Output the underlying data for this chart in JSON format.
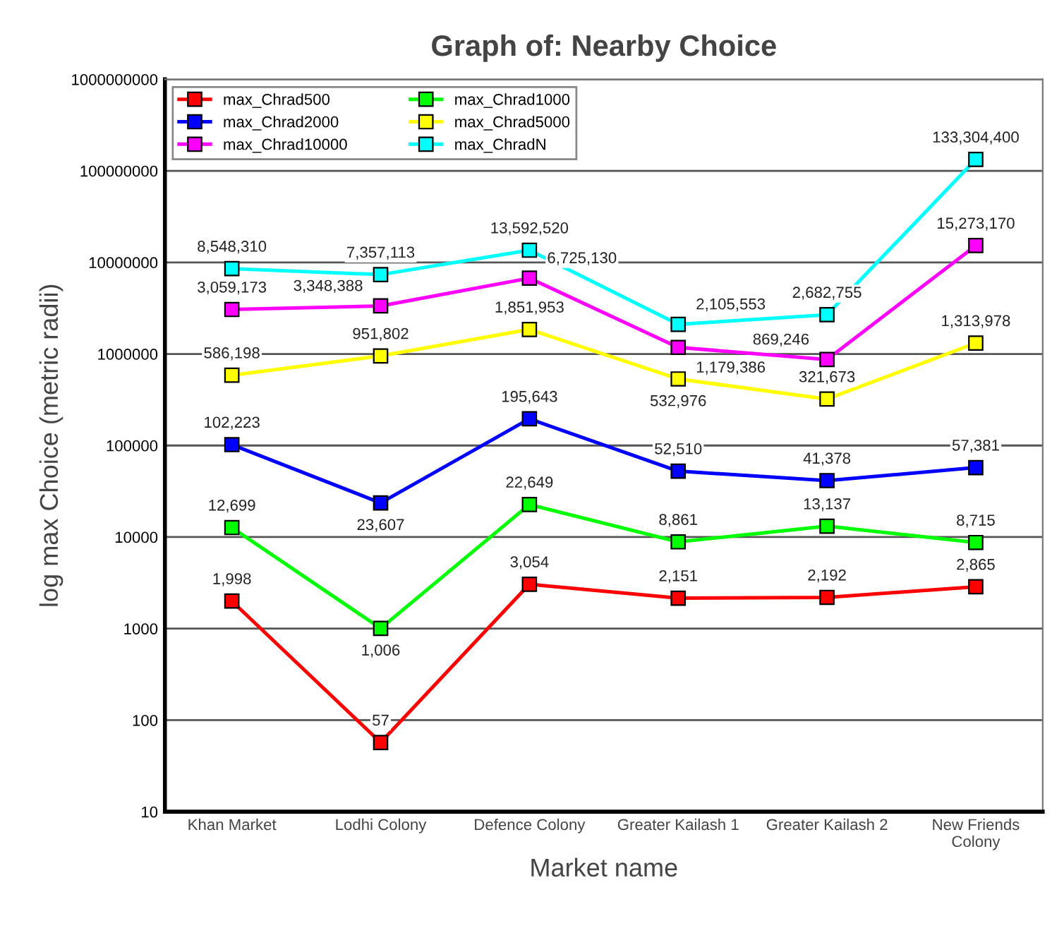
{
  "chart_data": {
    "type": "line",
    "title": "Graph of: Nearby Choice",
    "xlabel": "Market name",
    "ylabel": "log max Choice (metric radii)",
    "categories": [
      "Khan Market",
      "Lodhi Colony",
      "Defence Colony",
      "Greater Kailash 1",
      "Greater Kailash 2",
      "New Friends\nColony"
    ],
    "series": [
      {
        "name": "max_Chrad500",
        "color": "#ff0000",
        "values": [
          1998,
          57,
          3054,
          2151,
          2192,
          2865
        ],
        "value_labels": [
          "1,998",
          "57",
          "3,054",
          "2,151",
          "2,192",
          "2,865"
        ]
      },
      {
        "name": "max_Chrad1000",
        "color": "#00ff00",
        "values": [
          12699,
          1006,
          22649,
          8861,
          13137,
          8715
        ],
        "value_labels": [
          "12,699",
          "1,006",
          "22,649",
          "8,861",
          "13,137",
          "8,715"
        ]
      },
      {
        "name": "max_Chrad2000",
        "color": "#0000ff",
        "values": [
          102223,
          23607,
          195643,
          52510,
          41378,
          57381
        ],
        "value_labels": [
          "102,223",
          "23,607",
          "195,643",
          "52,510",
          "41,378",
          "57,381"
        ]
      },
      {
        "name": "max_Chrad5000",
        "color": "#ffff00",
        "values": [
          586198,
          951802,
          1851953,
          532976,
          321673,
          1313978
        ],
        "value_labels": [
          "586,198",
          "951,802",
          "1,851,953",
          "532,976",
          "321,673",
          "1,313,978"
        ]
      },
      {
        "name": "max_Chrad10000",
        "color": "#ff00ff",
        "values": [
          3059173,
          3348388,
          6725130,
          1179386,
          869246,
          15273170
        ],
        "value_labels": [
          "3,059,173",
          "3,348,388",
          "6,725,130",
          "1,179,386",
          "869,246",
          "15,273,170"
        ]
      },
      {
        "name": "max_ChradN",
        "color": "#00ffff",
        "values": [
          8548310,
          7357113,
          13592520,
          2105553,
          2682755,
          133304400
        ],
        "value_labels": [
          "8,548,310",
          "7,357,113",
          "13,592,520",
          "2,105,553",
          "2,682,755",
          "133,304,400"
        ]
      }
    ],
    "log": "y",
    "ylim": [
      10,
      1000000000
    ],
    "yticks": [
      10,
      100,
      1000,
      10000,
      100000,
      1000000,
      10000000,
      100000000,
      1000000000
    ],
    "grid": "y",
    "legend": "top left",
    "marker": "square",
    "line_style": "solid"
  }
}
